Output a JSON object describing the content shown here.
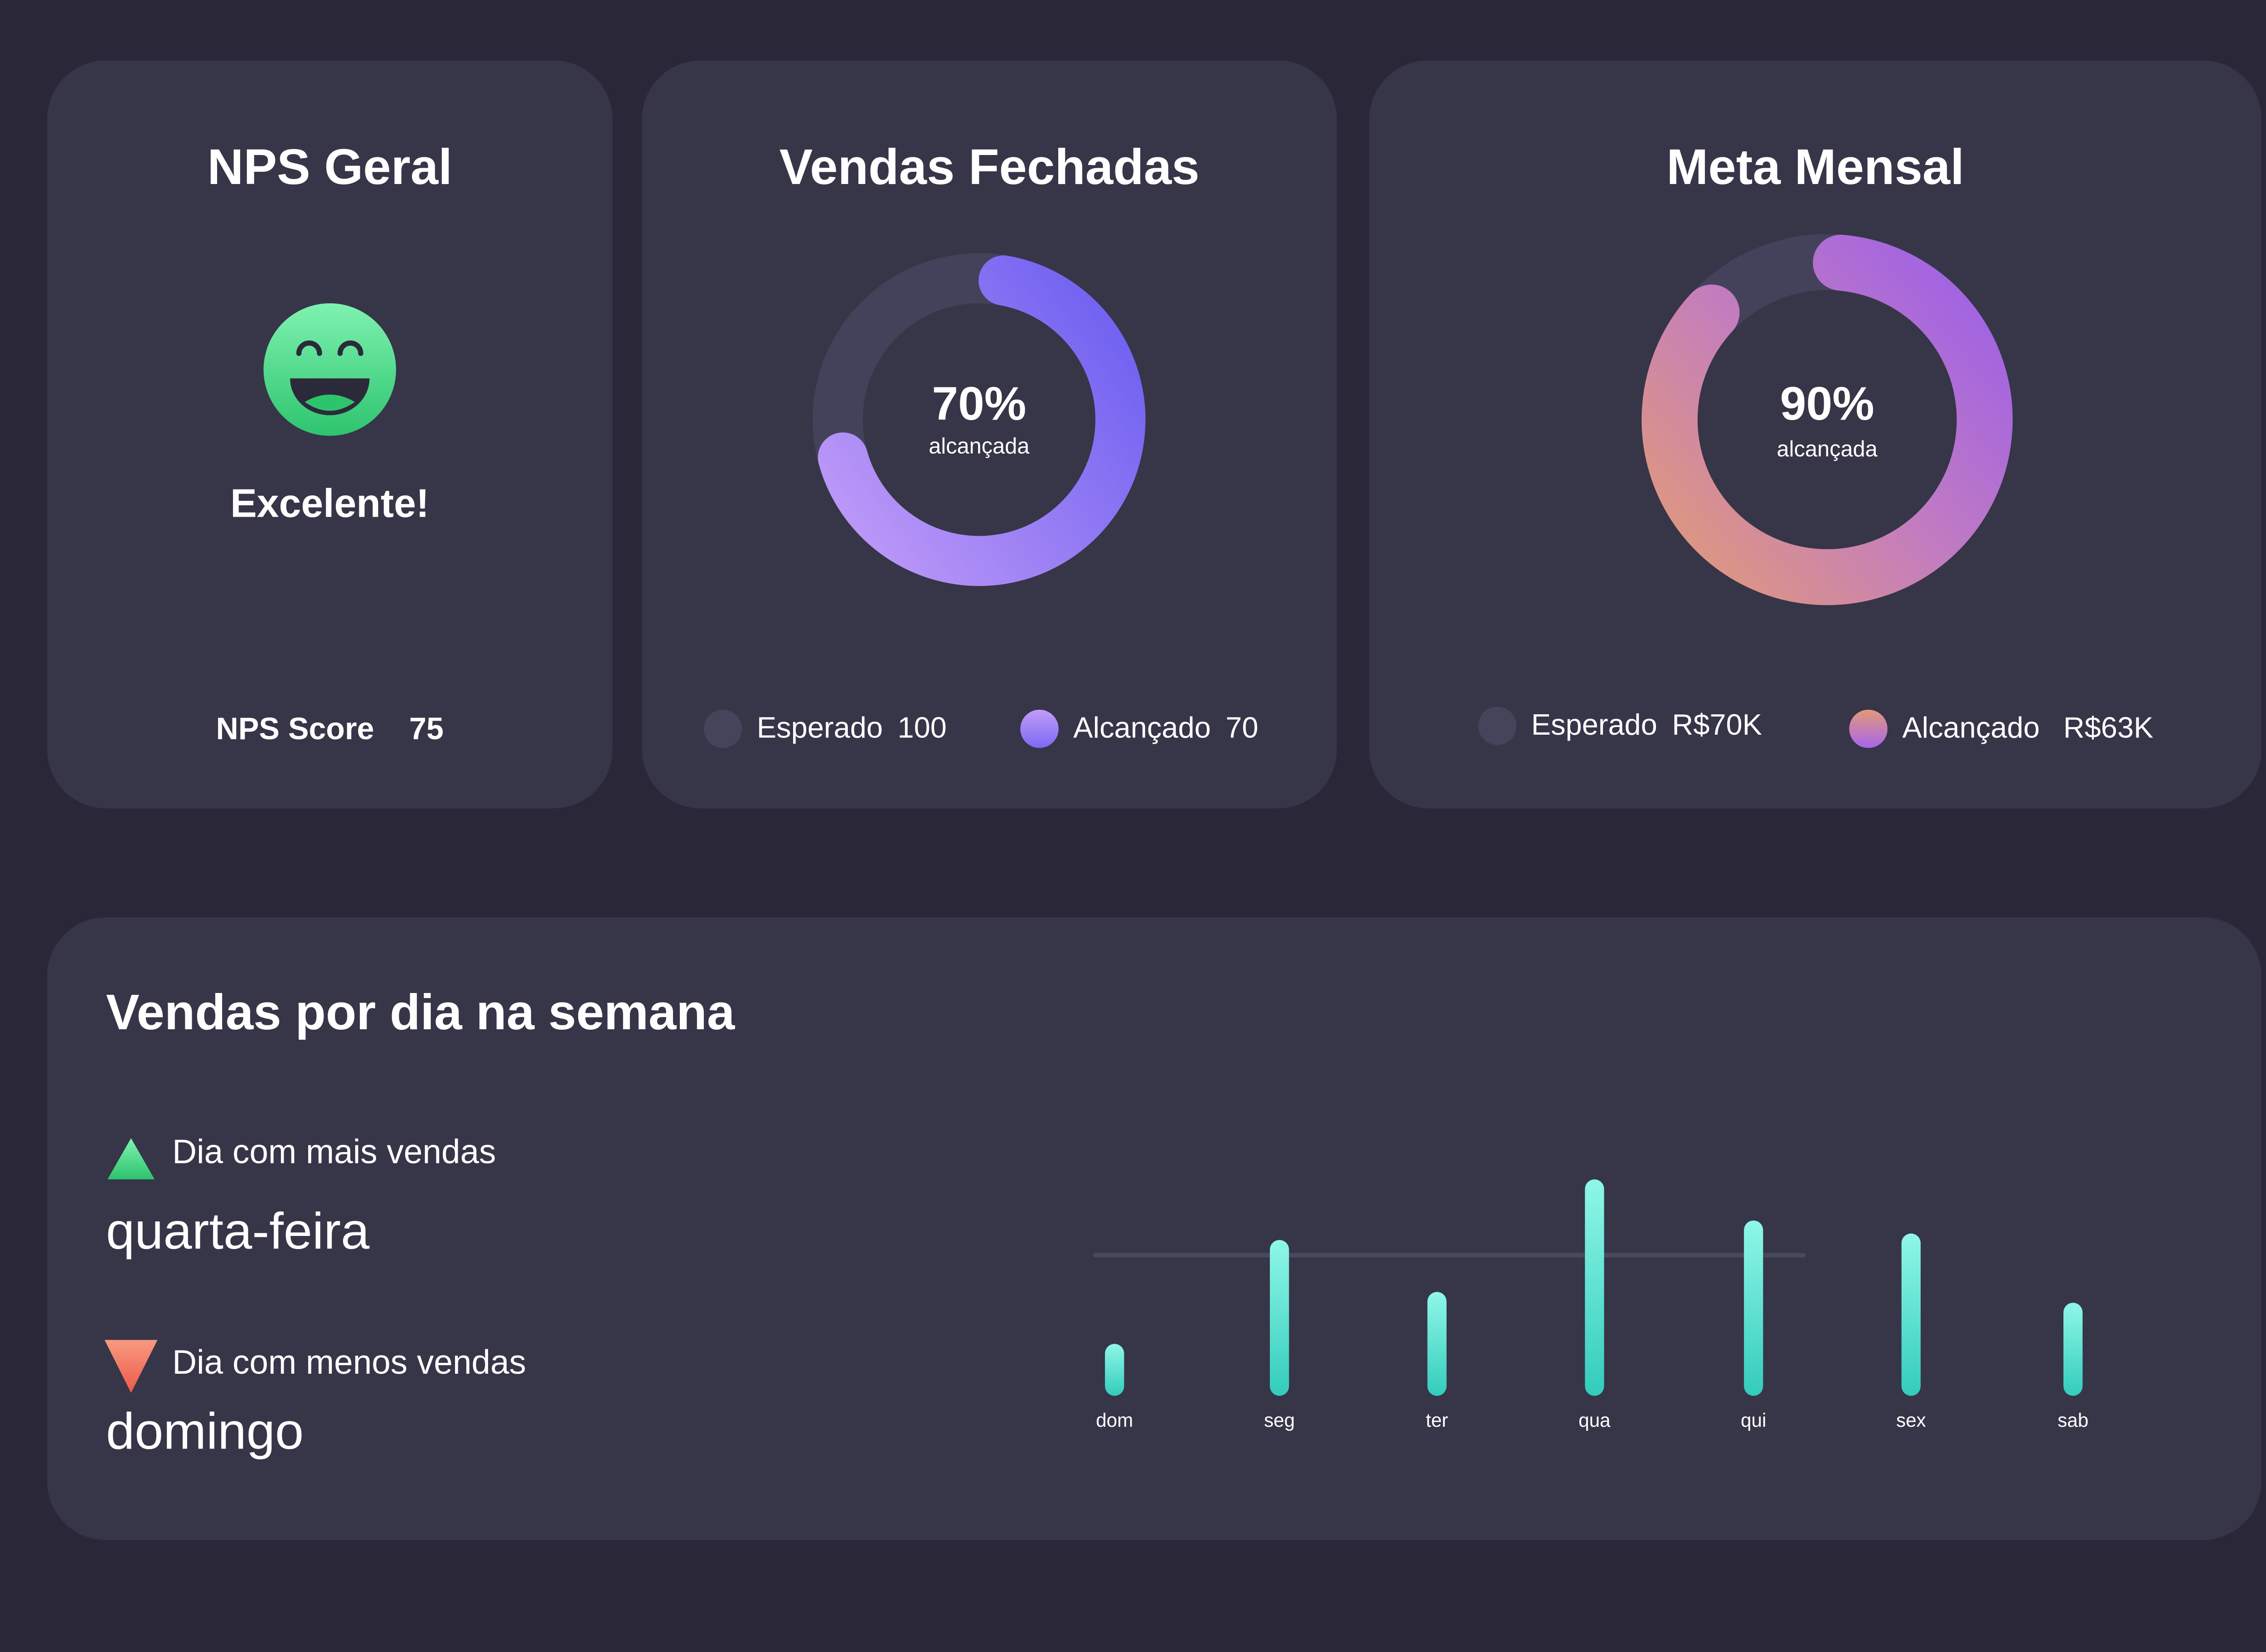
{
  "nps": {
    "title": "NPS Geral",
    "status": "Excelente!",
    "score_label": "NPS Score",
    "score_value": "75",
    "icon": "smiley-icon"
  },
  "vendas": {
    "title": "Vendas Fechadas",
    "percent": "70%",
    "sub": "alcançada",
    "progress": 0.7,
    "legend": [
      {
        "label": "Esperado",
        "value": "100"
      },
      {
        "label": "Alcançado",
        "value": "70"
      }
    ]
  },
  "meta": {
    "title": "Meta Mensal",
    "percent": "90%",
    "sub": "alcançada",
    "progress": 0.9,
    "legend": [
      {
        "label": "Esperado",
        "value": "R$70K"
      },
      {
        "label": "Alcançado",
        "value": "R$63K"
      }
    ]
  },
  "semana": {
    "title": "Vendas por dia na semana",
    "best_label": "Dia com mais vendas",
    "best_day": "quarta-feira",
    "worst_label": "Dia com menos vendas",
    "worst_day": "domingo"
  },
  "colors": {
    "bg": "#292738",
    "card": "#373548",
    "track": "#45435a",
    "teal_top": "#8ff7e8",
    "teal_bottom": "#33ccbb",
    "green": "#3dd68c",
    "red": "#f2735f"
  },
  "chart_data": {
    "type": "bar",
    "title": "Vendas por dia na semana",
    "categories": [
      "dom",
      "seg",
      "ter",
      "qua",
      "qui",
      "sex",
      "sab"
    ],
    "values": [
      24,
      72,
      48,
      100,
      81,
      75,
      43
    ],
    "reference_line": 65,
    "ylim": [
      0,
      100
    ],
    "xlabel": "",
    "ylabel": "",
    "grid": false
  }
}
